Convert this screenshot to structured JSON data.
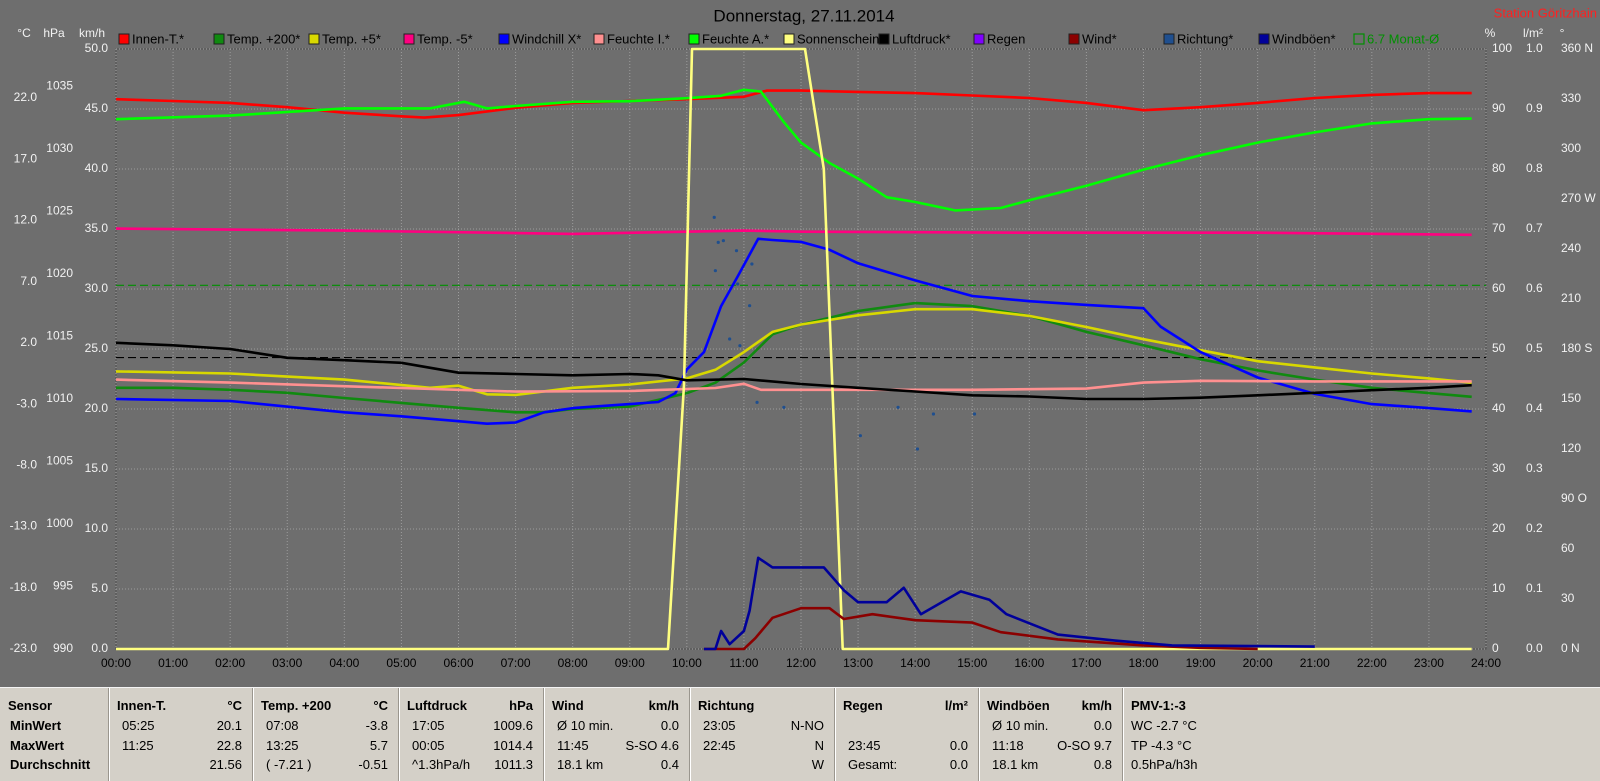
{
  "chart_data": {
    "type": "line",
    "title": "Donnerstag, 27.11.2014",
    "station": "Station Göritzhain",
    "grid": true,
    "xlim": [
      0,
      24
    ],
    "xticks": [
      {
        "value": 0,
        "label": "00:00"
      },
      {
        "value": 1,
        "label": "01:00"
      },
      {
        "value": 2,
        "label": "02:00"
      },
      {
        "value": 3,
        "label": "03:00"
      },
      {
        "value": 4,
        "label": "04:00"
      },
      {
        "value": 5,
        "label": "05:00"
      },
      {
        "value": 6,
        "label": "06:00"
      },
      {
        "value": 7,
        "label": "07:00"
      },
      {
        "value": 8,
        "label": "08:00"
      },
      {
        "value": 9,
        "label": "09:00"
      },
      {
        "value": 10,
        "label": "10:00"
      },
      {
        "value": 11,
        "label": "11:00"
      },
      {
        "value": 12,
        "label": "12:00"
      },
      {
        "value": 13,
        "label": "13:00"
      },
      {
        "value": 14,
        "label": "14:00"
      },
      {
        "value": 15,
        "label": "15:00"
      },
      {
        "value": 16,
        "label": "16:00"
      },
      {
        "value": 17,
        "label": "17:00"
      },
      {
        "value": 18,
        "label": "18:00"
      },
      {
        "value": 19,
        "label": "19:00"
      },
      {
        "value": 20,
        "label": "20:00"
      },
      {
        "value": 21,
        "label": "21:00"
      },
      {
        "value": 22,
        "label": "22:00"
      },
      {
        "value": 23,
        "label": "23:00"
      },
      {
        "value": 24,
        "label": "24:00"
      }
    ],
    "ylabel": "km/h",
    "ylim": [
      0,
      50
    ],
    "yticks": [
      {
        "value": 0,
        "label": "0.0"
      },
      {
        "value": 5,
        "label": "5.0"
      },
      {
        "value": 10,
        "label": "10.0"
      },
      {
        "value": 15,
        "label": "15.0"
      },
      {
        "value": 20,
        "label": "20.0"
      },
      {
        "value": 25,
        "label": "25.0"
      },
      {
        "value": 30,
        "label": "30.0"
      },
      {
        "value": 35,
        "label": "35.0"
      },
      {
        "value": 40,
        "label": "40.0"
      },
      {
        "value": 45,
        "label": "45.0"
      },
      {
        "value": 50,
        "label": "50.0"
      }
    ],
    "y2label": "°C",
    "y2lim": [
      -23,
      26
    ],
    "y2ticks": [
      {
        "value": -23,
        "label": "-23.0"
      },
      {
        "value": -18,
        "label": "-18.0"
      },
      {
        "value": -13,
        "label": "-13.0"
      },
      {
        "value": -8,
        "label": "-8.0"
      },
      {
        "value": -3,
        "label": "-3.0"
      },
      {
        "value": 2,
        "label": "2.0"
      },
      {
        "value": 7,
        "label": "7.0"
      },
      {
        "value": 12,
        "label": "12.0"
      },
      {
        "value": 17,
        "label": "17.0"
      },
      {
        "value": 22,
        "label": "22.0"
      }
    ],
    "y3label": "hPa",
    "y3lim": [
      990,
      1038
    ],
    "y3ticks": [
      990,
      995,
      1000,
      1005,
      1010,
      1015,
      1020,
      1025,
      1030,
      1035
    ],
    "y4label": "%",
    "y4lim": [
      0,
      100
    ],
    "y4ticks": [
      0,
      10,
      20,
      30,
      40,
      50,
      60,
      70,
      80,
      90,
      100
    ],
    "y5label": "l/m²",
    "y5lim": [
      0,
      1
    ],
    "y5ticks": [
      {
        "value": 0,
        "label": "0.0"
      },
      0.1,
      0.2,
      0.3,
      0.4,
      0.5,
      0.6,
      0.7,
      0.8,
      0.9,
      {
        "value": 1,
        "label": "1.0"
      }
    ],
    "y6label": "°",
    "y6lim": [
      0,
      360
    ],
    "y6ticks": [
      {
        "value": 0,
        "label": "0 N"
      },
      30,
      60,
      {
        "value": 90,
        "label": "90 O"
      },
      120,
      150,
      {
        "value": 180,
        "label": "180 S"
      },
      210,
      240,
      {
        "value": 270,
        "label": "270 W"
      },
      300,
      330,
      {
        "value": 360,
        "label": "360 N"
      }
    ],
    "reference_lines": [
      {
        "label": "6.7 Monat-Ø",
        "value": 6.7,
        "color": "#009000",
        "axis": "y2"
      },
      {
        "value": 0.8,
        "color": "#000000",
        "axis": "y2"
      }
    ],
    "series": [
      {
        "name": "Innen-T.*",
        "color": "#ff0000",
        "axis": "y2",
        "x": [
          0,
          1,
          2,
          3,
          4,
          5,
          5.4,
          6,
          7,
          8,
          9,
          10,
          10.5,
          11,
          11.4,
          12,
          13,
          14,
          15,
          16,
          17,
          18,
          19,
          20,
          21,
          22,
          23,
          23.75
        ],
        "values": [
          21.9,
          21.75,
          21.6,
          21.25,
          20.8,
          20.5,
          20.4,
          20.6,
          21.2,
          21.6,
          21.75,
          21.9,
          22.0,
          22.1,
          22.6,
          22.6,
          22.5,
          22.4,
          22.2,
          22.0,
          21.6,
          21.0,
          21.25,
          21.6,
          22.0,
          22.25,
          22.4,
          22.4
        ]
      },
      {
        "name": "Temp. +200*",
        "color": "#108a10",
        "axis": "y2",
        "x": [
          0,
          1,
          2,
          3,
          4,
          5,
          6,
          7,
          7.5,
          8,
          9,
          10,
          10.5,
          11,
          11.5,
          12,
          13,
          14,
          15,
          16,
          17,
          18,
          19,
          20,
          21,
          22,
          23,
          23.75
        ],
        "values": [
          -1.67,
          -1.67,
          -1.83,
          -2.08,
          -2.5,
          -2.9,
          -3.3,
          -3.67,
          -3.67,
          -3.4,
          -3.2,
          -2.1,
          -1.25,
          0.4,
          2.7,
          3.5,
          4.6,
          5.25,
          5.0,
          4.2,
          2.9,
          1.8,
          0.67,
          -0.25,
          -1.0,
          -1.67,
          -2.1,
          -2.4
        ]
      },
      {
        "name": "Temp. +5*",
        "color": "#d8d800",
        "axis": "y2",
        "x": [
          0,
          2,
          4,
          5.5,
          6,
          6.5,
          7,
          8,
          9,
          10,
          10.5,
          11,
          11.5,
          12,
          13,
          14,
          15,
          16,
          17,
          18,
          19,
          20,
          21,
          22,
          23,
          23.75
        ],
        "values": [
          -0.33,
          -0.5,
          -1.0,
          -1.67,
          -1.5,
          -2.2,
          -2.25,
          -1.67,
          -1.4,
          -0.9,
          -0.2,
          1.25,
          2.9,
          3.5,
          4.25,
          4.75,
          4.75,
          4.2,
          3.3,
          2.3,
          1.4,
          0.5,
          0,
          -0.5,
          -0.9,
          -1.25
        ]
      },
      {
        "name": "Temp. -5*",
        "color": "#ff0080",
        "axis": "y2",
        "x": [
          0,
          4,
          8,
          11,
          12,
          16,
          20,
          23.75
        ],
        "values": [
          11.33,
          11.17,
          10.9,
          11.17,
          11.08,
          11.0,
          11.0,
          10.83
        ]
      },
      {
        "name": "Windchill X*",
        "color": "#0000ff",
        "axis": "y2",
        "x": [
          0,
          2,
          4,
          5,
          6,
          6.5,
          7,
          7.5,
          8,
          9,
          9.5,
          9.8,
          10,
          10.3,
          10.6,
          10.9,
          11.25,
          11.5,
          12,
          12.5,
          13,
          14,
          15,
          16,
          17,
          18,
          18.3,
          19,
          20,
          21,
          22,
          23,
          23.75
        ],
        "values": [
          -2.58,
          -2.75,
          -3.67,
          -4.0,
          -4.4,
          -4.6,
          -4.5,
          -3.67,
          -3.33,
          -3.0,
          -2.83,
          -2.1,
          -0.17,
          1.25,
          5.0,
          7.5,
          10.5,
          10.4,
          10.25,
          9.6,
          8.5,
          7.1,
          5.83,
          5.4,
          5.1,
          4.83,
          3.33,
          1.25,
          -0.83,
          -2.17,
          -3.0,
          -3.33,
          -3.6
        ]
      },
      {
        "name": "Feuchte I.*",
        "color": "#ff9090",
        "axis": "y4",
        "x": [
          0,
          2,
          5,
          6,
          7,
          9,
          10.5,
          11,
          11.3,
          12,
          15,
          17,
          18,
          19,
          21,
          23.75
        ],
        "values": [
          44.9,
          44.4,
          43.5,
          43.2,
          42.9,
          43.0,
          43.5,
          44.2,
          43.2,
          43.2,
          43.2,
          43.4,
          44.4,
          44.7,
          44.6,
          44.6
        ]
      },
      {
        "name": "Feuchte A.*",
        "color": "#00ff00",
        "axis": "y4",
        "x": [
          0,
          2,
          4,
          5.5,
          6.1,
          6.5,
          7,
          8,
          9,
          10,
          10.6,
          11,
          11.3,
          11.7,
          12,
          12.5,
          13,
          13.5,
          14,
          14.7,
          15.5,
          16,
          17,
          18,
          19,
          20,
          21,
          22,
          23,
          23.75
        ],
        "values": [
          88.3,
          88.9,
          90.1,
          90.1,
          91.2,
          90.1,
          90.5,
          91.2,
          91.3,
          91.8,
          92.2,
          93.2,
          92.9,
          87.8,
          84.4,
          81.0,
          78.4,
          75.3,
          74.5,
          73.1,
          73.5,
          74.8,
          77.2,
          79.9,
          82.3,
          84.4,
          86.1,
          87.6,
          88.3,
          88.4
        ]
      },
      {
        "name": "Sonnenschein",
        "color": "#ffff80",
        "axis": "y4",
        "x": [
          0,
          9.67,
          9.95,
          10.09,
          12.07,
          12.4,
          12.73,
          23.75
        ],
        "values": [
          0,
          0,
          44,
          100,
          100,
          80,
          0,
          0
        ]
      },
      {
        "name": "Luftdruck*",
        "color": "#000000",
        "axis": "y3",
        "x": [
          0,
          1,
          2,
          3,
          4,
          5,
          6,
          7,
          8,
          9,
          9.5,
          10,
          11,
          12,
          13,
          14,
          15,
          16,
          17,
          18,
          19,
          20,
          21,
          22,
          23,
          23.75
        ],
        "values": [
          1014.5,
          1014.3,
          1014.0,
          1013.3,
          1013.1,
          1012.9,
          1012.1,
          1012.0,
          1011.9,
          1012.0,
          1011.9,
          1011.5,
          1011.6,
          1011.2,
          1010.9,
          1010.6,
          1010.3,
          1010.2,
          1010.0,
          1010.0,
          1010.1,
          1010.3,
          1010.5,
          1010.7,
          1010.9,
          1011.1
        ]
      },
      {
        "name": "Regen",
        "color": "#8000ff",
        "axis": "y5",
        "x": [],
        "values": []
      },
      {
        "name": "Wind*",
        "color": "#8b0000",
        "axis": "y",
        "x": [
          10.3,
          11.0,
          11.2,
          11.5,
          12.0,
          12.5,
          12.75,
          13.25,
          14,
          15,
          15.5,
          16.5,
          18,
          19,
          20
        ],
        "values": [
          0,
          0,
          0.9,
          2.6,
          3.4,
          3.4,
          2.5,
          2.9,
          2.4,
          2.2,
          1.4,
          0.8,
          0.3,
          0.1,
          0
        ]
      },
      {
        "name": "Richtung*",
        "color": "#1f4f8f",
        "axis": "y6",
        "style": "dots",
        "x": [
          10.48,
          10.55,
          10.64,
          10.5,
          10.87,
          11.14,
          10.89,
          10.75,
          11.1,
          10.93,
          11.23,
          11.7,
          13.04,
          13.7,
          14.04,
          14.32,
          15.04
        ],
        "values": [
          259,
          244,
          245,
          227,
          239,
          231,
          219,
          186,
          206,
          182,
          148,
          145,
          128,
          145,
          120,
          141,
          141
        ]
      },
      {
        "name": "Windböen*",
        "color": "#00009a",
        "axis": "y",
        "x": [
          10.3,
          10.5,
          10.6,
          10.75,
          11.0,
          11.1,
          11.25,
          11.5,
          12.4,
          12.75,
          13.0,
          13.5,
          13.8,
          14.1,
          14.8,
          15.3,
          15.6,
          16.5,
          17.5,
          18.5,
          21
        ],
        "values": [
          0,
          0,
          1.5,
          0.4,
          1.5,
          3.2,
          7.6,
          6.8,
          6.8,
          4.9,
          3.9,
          3.9,
          5.1,
          2.9,
          4.8,
          4.1,
          2.9,
          1.2,
          0.7,
          0.3,
          0.2
        ]
      }
    ]
  },
  "table": {
    "columns": [
      {
        "title": "Sensor",
        "rows": [
          [
            "MinWert"
          ],
          [
            "MaxWert"
          ],
          [
            "Durchschnitt"
          ]
        ]
      },
      {
        "title": "Innen-T.",
        "unit": "°C",
        "rows": [
          [
            "05:25",
            "20.1"
          ],
          [
            "11:25",
            "22.8"
          ],
          [
            null,
            "21.56"
          ]
        ]
      },
      {
        "title": "Temp. +200",
        "unit": "°C",
        "rows": [
          [
            "07:08",
            "-3.8"
          ],
          [
            "13:25",
            "5.7"
          ],
          [
            "( -7.21 )",
            "-0.51"
          ]
        ]
      },
      {
        "title": "Luftdruck",
        "unit": "hPa",
        "rows": [
          [
            "17:05",
            "1009.6"
          ],
          [
            "00:05",
            "1014.4"
          ],
          [
            "^1.3hPa/h",
            "1011.3"
          ]
        ]
      },
      {
        "title": "Wind",
        "unit": "km/h",
        "rows": [
          [
            "Ø 10 min.",
            "0.0"
          ],
          [
            "11:45",
            "S-SO 4.6"
          ],
          [
            "18.1 km",
            "0.4"
          ]
        ]
      },
      {
        "title": "Richtung",
        "rows": [
          [
            "23:05",
            "N-NO"
          ],
          [
            "22:45",
            "N"
          ],
          [
            null,
            "W"
          ]
        ]
      },
      {
        "title": "Regen",
        "unit": "l/m²",
        "rows": [
          [
            null,
            null
          ],
          [
            "23:45",
            "0.0"
          ],
          [
            "Gesamt:",
            "0.0"
          ]
        ]
      },
      {
        "title": "Windböen",
        "unit": "km/h",
        "rows": [
          [
            "Ø 10 min.",
            "0.0"
          ],
          [
            "11:18",
            "O-SO 9.7"
          ],
          [
            "18.1 km",
            "0.8"
          ]
        ]
      },
      {
        "title": "PMV-1:-3",
        "rows": [
          [
            "WC -2.7 °C"
          ],
          [
            "TP -4.3 °C"
          ],
          [
            "0.5hPa/h3h"
          ]
        ]
      }
    ]
  }
}
